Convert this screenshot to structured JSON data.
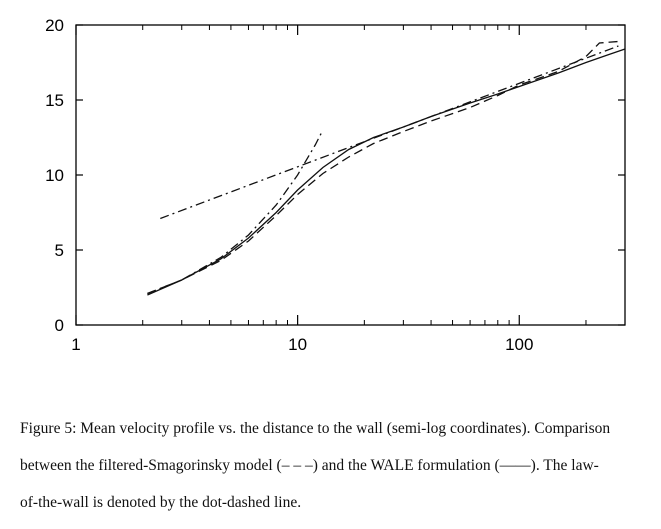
{
  "chart_data": {
    "type": "line",
    "xscale": "log",
    "xlim": [
      1,
      300
    ],
    "ylim": [
      0,
      20
    ],
    "x_ticks": [
      1,
      10,
      100
    ],
    "x_tick_labels": [
      "1",
      "10",
      "100"
    ],
    "y_ticks": [
      0,
      5,
      10,
      15,
      20
    ],
    "y_tick_labels": [
      "0",
      "5",
      "10",
      "15",
      "20"
    ],
    "grid": false,
    "series": [
      {
        "style": "dashed",
        "x": [
          2.1,
          3.0,
          4.5,
          6.0,
          8.0,
          10.0,
          13.0,
          17.0,
          22.0,
          30.0,
          40.0,
          60.0,
          80.0,
          100.0,
          150.0,
          200.0,
          230.0,
          280.0
        ],
        "y": [
          2.1,
          3.0,
          4.3,
          5.6,
          7.3,
          8.7,
          10.1,
          11.2,
          12.1,
          12.9,
          13.6,
          14.5,
          15.3,
          16.0,
          16.9,
          17.9,
          18.8,
          18.9
        ]
      },
      {
        "style": "solid",
        "x": [
          2.1,
          3.0,
          4.5,
          6.0,
          8.0,
          10.0,
          13.0,
          17.0,
          22.0,
          30.0,
          40.0,
          60.0,
          80.0,
          100.0,
          150.0,
          200.0,
          250.0,
          300.0
        ],
        "y": [
          2.0,
          3.0,
          4.4,
          5.8,
          7.5,
          9.0,
          10.5,
          11.7,
          12.5,
          13.2,
          13.9,
          14.8,
          15.4,
          15.9,
          16.8,
          17.5,
          18.0,
          18.4
        ]
      },
      {
        "style": "dashdot",
        "x": [
          2.1,
          3.0,
          4.5,
          6.0,
          8.0,
          10.0,
          12.0,
          13.0
        ],
        "y": [
          2.1,
          3.0,
          4.5,
          6.0,
          8.0,
          10.0,
          12.0,
          13.0
        ]
      },
      {
        "style": "dashdot",
        "x": [
          2.4,
          280.0
        ],
        "y": [
          7.1,
          18.6
        ]
      }
    ]
  },
  "caption": {
    "lines": [
      "Figure 5: Mean velocity profile vs. the distance to the wall (semi-log coordinates). Comparison",
      "between the filtered-Smagorinsky model (– – –) and the WALE formulation (——). The law-",
      "of-the-wall is denoted by the dot-dashed line."
    ]
  }
}
